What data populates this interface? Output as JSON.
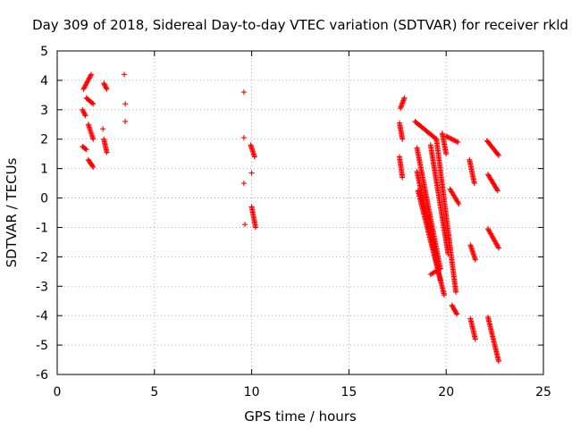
{
  "chart_data": {
    "type": "scatter",
    "title": "Day 309 of 2018, Sidereal Day-to-day VTEC variation (SDTVAR) for receiver rkld",
    "xlabel": "GPS time / hours",
    "ylabel": "SDTVAR / TECUs",
    "xlim": [
      0,
      25
    ],
    "ylim": [
      -6,
      5
    ],
    "xticks": [
      0,
      5,
      10,
      15,
      20,
      25
    ],
    "yticks": [
      -6,
      -5,
      -4,
      -3,
      -2,
      -1,
      0,
      1,
      2,
      3,
      4,
      5
    ],
    "grid": true,
    "marker": "plus",
    "color": "#ff0000",
    "segments": [
      {
        "x0": 1.35,
        "y0": 3.7,
        "x1": 1.75,
        "y1": 4.2
      },
      {
        "x0": 1.3,
        "y0": 3.0,
        "x1": 1.45,
        "y1": 2.8
      },
      {
        "x0": 1.5,
        "y0": 3.4,
        "x1": 1.85,
        "y1": 3.2
      },
      {
        "x0": 1.3,
        "y0": 1.75,
        "x1": 1.5,
        "y1": 1.65
      },
      {
        "x0": 1.6,
        "y0": 2.5,
        "x1": 1.85,
        "y1": 2.0
      },
      {
        "x0": 1.6,
        "y0": 1.3,
        "x1": 1.85,
        "y1": 1.05
      },
      {
        "x0": 2.4,
        "y0": 2.0,
        "x1": 2.55,
        "y1": 1.55
      },
      {
        "x0": 2.4,
        "y0": 3.9,
        "x1": 2.55,
        "y1": 3.7
      },
      {
        "x0": 9.95,
        "y0": 1.8,
        "x1": 10.15,
        "y1": 1.4
      },
      {
        "x0": 10.0,
        "y0": -0.3,
        "x1": 10.2,
        "y1": -1.0
      },
      {
        "x0": 17.65,
        "y0": 3.05,
        "x1": 17.85,
        "y1": 3.4
      },
      {
        "x0": 17.6,
        "y0": 2.55,
        "x1": 17.75,
        "y1": 2.0
      },
      {
        "x0": 17.6,
        "y0": 1.4,
        "x1": 17.75,
        "y1": 0.7
      },
      {
        "x0": 18.4,
        "y0": 2.6,
        "x1": 19.5,
        "y1": 2.0
      },
      {
        "x0": 18.5,
        "y0": 1.7,
        "x1": 19.7,
        "y1": -2.4
      },
      {
        "x0": 18.5,
        "y0": 0.9,
        "x1": 19.7,
        "y1": -2.8
      },
      {
        "x0": 18.55,
        "y0": 0.25,
        "x1": 19.9,
        "y1": -3.3
      },
      {
        "x0": 19.2,
        "y0": -2.6,
        "x1": 19.7,
        "y1": -2.4
      },
      {
        "x0": 19.2,
        "y0": 1.8,
        "x1": 20.1,
        "y1": -1.9
      },
      {
        "x0": 19.5,
        "y0": 2.0,
        "x1": 20.5,
        "y1": -3.2
      },
      {
        "x0": 19.8,
        "y0": 2.2,
        "x1": 20.0,
        "y1": 1.5
      },
      {
        "x0": 20.0,
        "y0": 2.1,
        "x1": 20.6,
        "y1": 1.9
      },
      {
        "x0": 20.2,
        "y0": 0.3,
        "x1": 20.65,
        "y1": -0.2
      },
      {
        "x0": 20.3,
        "y0": -3.65,
        "x1": 20.55,
        "y1": -3.95
      },
      {
        "x0": 21.2,
        "y0": 1.3,
        "x1": 21.45,
        "y1": 0.5
      },
      {
        "x0": 21.25,
        "y0": -1.6,
        "x1": 21.5,
        "y1": -2.1
      },
      {
        "x0": 21.25,
        "y0": -4.1,
        "x1": 21.5,
        "y1": -4.8
      },
      {
        "x0": 22.1,
        "y0": 1.95,
        "x1": 22.7,
        "y1": 1.45
      },
      {
        "x0": 22.15,
        "y0": 0.8,
        "x1": 22.65,
        "y1": 0.25
      },
      {
        "x0": 22.15,
        "y0": -1.05,
        "x1": 22.7,
        "y1": -1.7
      },
      {
        "x0": 22.15,
        "y0": -4.05,
        "x1": 22.7,
        "y1": -5.55
      }
    ],
    "points": [
      [
        3.45,
        4.2
      ],
      [
        3.5,
        3.2
      ],
      [
        3.5,
        2.6
      ],
      [
        2.35,
        2.35
      ],
      [
        9.6,
        3.6
      ],
      [
        9.6,
        2.05
      ],
      [
        9.6,
        0.5
      ],
      [
        9.65,
        -0.9
      ],
      [
        10.0,
        0.85
      ]
    ]
  }
}
